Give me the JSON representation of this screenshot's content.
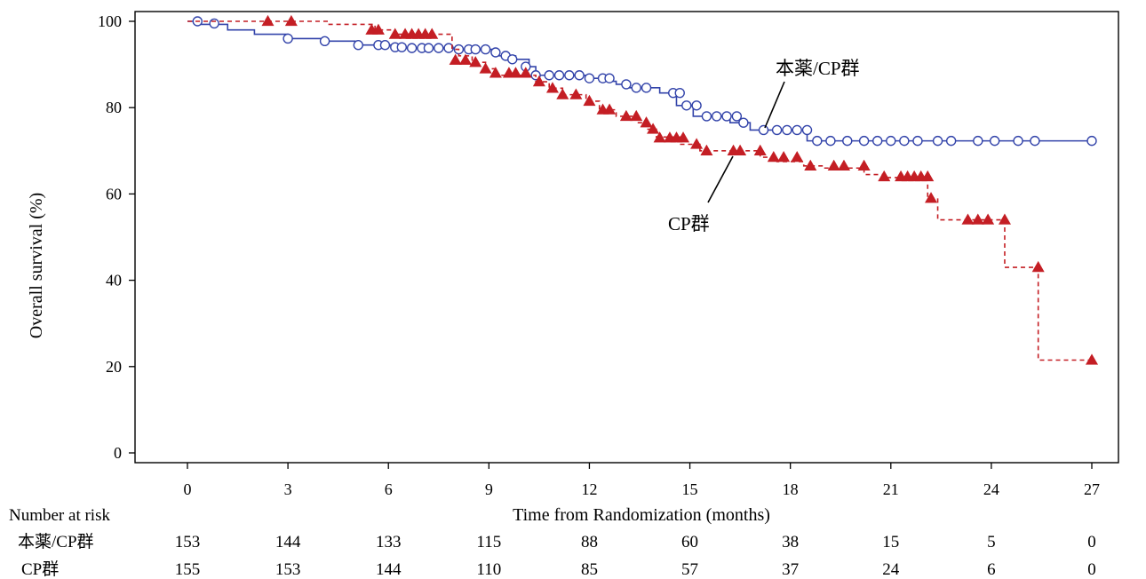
{
  "chart_data": {
    "type": "line",
    "title": "",
    "xlabel": "Time from Randomization (months)",
    "ylabel": "Overall survival (%)",
    "xlim": [
      -1.5,
      28.5
    ],
    "ylim": [
      -2,
      102
    ],
    "xticks": [
      0,
      3,
      6,
      9,
      12,
      15,
      18,
      21,
      24,
      27
    ],
    "yticks": [
      0,
      20,
      40,
      60,
      80,
      100
    ],
    "grid": false,
    "legend": "none",
    "series": [
      {
        "name": "本薬/CP群",
        "color": "#3344aa",
        "line_style": "solid",
        "marker": "open-circle",
        "steps": [
          [
            0,
            100
          ],
          [
            0.4,
            99.3
          ],
          [
            1.2,
            98
          ],
          [
            2,
            97
          ],
          [
            3,
            96
          ],
          [
            4.1,
            95.4
          ],
          [
            5,
            94.5
          ],
          [
            6.3,
            93.8
          ],
          [
            8,
            93.5
          ],
          [
            9.1,
            92.8
          ],
          [
            9.3,
            92
          ],
          [
            9.8,
            91.2
          ],
          [
            10.2,
            89.5
          ],
          [
            10.4,
            87.5
          ],
          [
            11.9,
            86.8
          ],
          [
            12.3,
            86.1
          ],
          [
            12.8,
            85.4
          ],
          [
            13.2,
            84.6
          ],
          [
            14.1,
            83.4
          ],
          [
            14.6,
            80.5
          ],
          [
            15.1,
            78
          ],
          [
            16.2,
            76.5
          ],
          [
            16.8,
            74.8
          ],
          [
            18.5,
            72.3
          ],
          [
            27,
            72.3
          ]
        ],
        "censor": [
          [
            0.3,
            100
          ],
          [
            0.8,
            99.5
          ],
          [
            3,
            96
          ],
          [
            4.1,
            95.4
          ],
          [
            5.1,
            94.5
          ],
          [
            5.7,
            94.5
          ],
          [
            5.9,
            94.5
          ],
          [
            6.2,
            94
          ],
          [
            6.4,
            94
          ],
          [
            6.7,
            93.8
          ],
          [
            7,
            93.8
          ],
          [
            7.2,
            93.8
          ],
          [
            7.5,
            93.8
          ],
          [
            7.8,
            93.8
          ],
          [
            8.1,
            93.5
          ],
          [
            8.4,
            93.5
          ],
          [
            8.6,
            93.5
          ],
          [
            8.9,
            93.5
          ],
          [
            9.2,
            92.8
          ],
          [
            9.5,
            92
          ],
          [
            9.7,
            91.2
          ],
          [
            10.1,
            89.5
          ],
          [
            10.4,
            87.5
          ],
          [
            10.8,
            87.5
          ],
          [
            11.1,
            87.5
          ],
          [
            11.4,
            87.5
          ],
          [
            11.7,
            87.5
          ],
          [
            12,
            86.8
          ],
          [
            12.4,
            86.8
          ],
          [
            12.6,
            86.8
          ],
          [
            13.1,
            85.4
          ],
          [
            13.4,
            84.6
          ],
          [
            13.7,
            84.6
          ],
          [
            14.5,
            83.4
          ],
          [
            14.7,
            83.4
          ],
          [
            14.9,
            80.5
          ],
          [
            15.2,
            80.5
          ],
          [
            15.5,
            78
          ],
          [
            15.8,
            78
          ],
          [
            16.1,
            78
          ],
          [
            16.4,
            78
          ],
          [
            16.6,
            76.5
          ],
          [
            17.2,
            74.8
          ],
          [
            17.6,
            74.8
          ],
          [
            17.9,
            74.8
          ],
          [
            18.2,
            74.8
          ],
          [
            18.5,
            74.8
          ],
          [
            18.8,
            72.3
          ],
          [
            19.2,
            72.3
          ],
          [
            19.7,
            72.3
          ],
          [
            20.2,
            72.3
          ],
          [
            20.6,
            72.3
          ],
          [
            21,
            72.3
          ],
          [
            21.4,
            72.3
          ],
          [
            21.8,
            72.3
          ],
          [
            22.4,
            72.3
          ],
          [
            22.8,
            72.3
          ],
          [
            23.6,
            72.3
          ],
          [
            24.1,
            72.3
          ],
          [
            24.8,
            72.3
          ],
          [
            25.3,
            72.3
          ],
          [
            27,
            72.3
          ]
        ]
      },
      {
        "name": "CP群",
        "color": "#c41e24",
        "line_style": "dashed",
        "marker": "filled-triangle",
        "steps": [
          [
            0,
            100
          ],
          [
            4.2,
            99.3
          ],
          [
            5.6,
            98
          ],
          [
            6.2,
            97
          ],
          [
            7.9,
            93.5
          ],
          [
            8.1,
            92
          ],
          [
            8.5,
            90.5
          ],
          [
            8.9,
            89
          ],
          [
            9.2,
            87.5
          ],
          [
            10.4,
            86
          ],
          [
            10.8,
            84.5
          ],
          [
            11.2,
            83
          ],
          [
            11.9,
            81.5
          ],
          [
            12.3,
            79.5
          ],
          [
            12.8,
            78
          ],
          [
            13.4,
            76.5
          ],
          [
            13.7,
            75
          ],
          [
            14,
            73.2
          ],
          [
            14.7,
            71.5
          ],
          [
            15.3,
            70
          ],
          [
            17.1,
            68.5
          ],
          [
            17.6,
            67.5
          ],
          [
            18.4,
            66.5
          ],
          [
            19,
            66
          ],
          [
            20.2,
            64.5
          ],
          [
            20.8,
            63.8
          ],
          [
            22.1,
            59
          ],
          [
            22.4,
            54
          ],
          [
            24.4,
            43
          ],
          [
            25.4,
            21.5
          ],
          [
            27,
            21.5
          ]
        ],
        "censor": [
          [
            2.4,
            100
          ],
          [
            3.1,
            100
          ],
          [
            5.5,
            98
          ],
          [
            5.7,
            98
          ],
          [
            6.2,
            97
          ],
          [
            6.5,
            97
          ],
          [
            6.7,
            97
          ],
          [
            6.9,
            97
          ],
          [
            7.1,
            97
          ],
          [
            7.3,
            97
          ],
          [
            8,
            91
          ],
          [
            8.3,
            91
          ],
          [
            8.6,
            90.5
          ],
          [
            8.9,
            89
          ],
          [
            9.2,
            88
          ],
          [
            9.6,
            88
          ],
          [
            9.8,
            88
          ],
          [
            10.1,
            88
          ],
          [
            10.5,
            86
          ],
          [
            10.9,
            84.5
          ],
          [
            11.2,
            83
          ],
          [
            11.6,
            83
          ],
          [
            12,
            81.5
          ],
          [
            12.4,
            79.5
          ],
          [
            12.6,
            79.5
          ],
          [
            13.1,
            78
          ],
          [
            13.4,
            78
          ],
          [
            13.7,
            76.5
          ],
          [
            13.9,
            75
          ],
          [
            14.1,
            73
          ],
          [
            14.4,
            73
          ],
          [
            14.6,
            73
          ],
          [
            14.8,
            73
          ],
          [
            15.2,
            71.5
          ],
          [
            15.5,
            70
          ],
          [
            16.3,
            70
          ],
          [
            16.5,
            70
          ],
          [
            17.1,
            70
          ],
          [
            17.5,
            68.5
          ],
          [
            17.8,
            68.5
          ],
          [
            18.2,
            68.5
          ],
          [
            18.6,
            66.5
          ],
          [
            19.3,
            66.5
          ],
          [
            19.6,
            66.5
          ],
          [
            20.2,
            66.5
          ],
          [
            20.8,
            64
          ],
          [
            21.3,
            64
          ],
          [
            21.5,
            64
          ],
          [
            21.7,
            64
          ],
          [
            21.9,
            64
          ],
          [
            22.1,
            64
          ],
          [
            22.2,
            59
          ],
          [
            23.3,
            54
          ],
          [
            23.6,
            54
          ],
          [
            23.9,
            54
          ],
          [
            24.4,
            54
          ],
          [
            25.4,
            43
          ],
          [
            27,
            21.5
          ]
        ]
      }
    ],
    "annotations": [
      {
        "text": "本薬/CP群",
        "series": 0
      },
      {
        "text": "CP群",
        "series": 1
      }
    ],
    "risk_table": {
      "title": "Number at risk",
      "rows": [
        {
          "label": "本薬/CP群",
          "values": [
            "153",
            "144",
            "133",
            "115",
            "88",
            "60",
            "38",
            "15",
            "5",
            "0"
          ]
        },
        {
          "label": "CP群",
          "values": [
            "155",
            "153",
            "144",
            "110",
            "85",
            "57",
            "37",
            "24",
            "6",
            "0"
          ]
        }
      ]
    }
  }
}
